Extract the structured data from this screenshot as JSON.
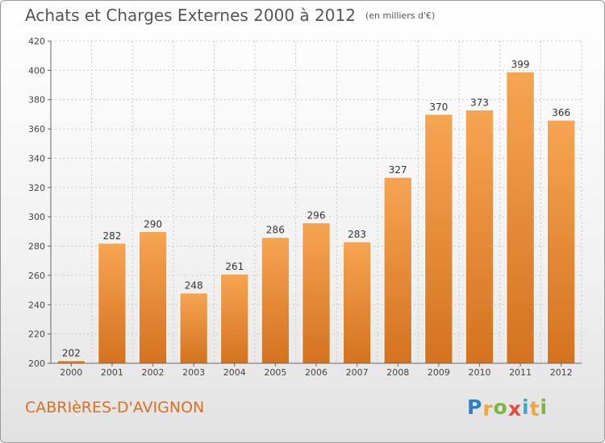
{
  "title": "Achats et Charges Externes 2000 à 2012",
  "title_unit": "(en milliers d'€)",
  "commune": "CABRIèRES-D'AVIGNON",
  "logo": {
    "letters": [
      "P",
      "r",
      "o",
      "x",
      "i",
      "t",
      "i"
    ],
    "colors": [
      "#2f7fc4",
      "#f2a53a",
      "#79b83c",
      "#e94b3c",
      "#3aa7d9",
      "#f2a53a",
      "#79b83c"
    ]
  },
  "colors": {
    "bar_top": "#f6a552",
    "bar_bottom": "#d4721f",
    "grid": "#cccccc",
    "axis": "#666666"
  },
  "chart_data": {
    "type": "bar",
    "title": "Achats et Charges Externes 2000 à 2012",
    "xlabel": "",
    "ylabel": "",
    "categories": [
      "2000",
      "2001",
      "2002",
      "2003",
      "2004",
      "2005",
      "2006",
      "2007",
      "2008",
      "2009",
      "2010",
      "2011",
      "2012"
    ],
    "values": [
      202,
      282,
      290,
      248,
      261,
      286,
      296,
      283,
      327,
      370,
      373,
      399,
      366
    ],
    "ylim": [
      200,
      420
    ],
    "yticks": [
      200,
      220,
      240,
      260,
      280,
      300,
      320,
      340,
      360,
      380,
      400,
      420
    ],
    "grid": true,
    "legend": "none"
  }
}
